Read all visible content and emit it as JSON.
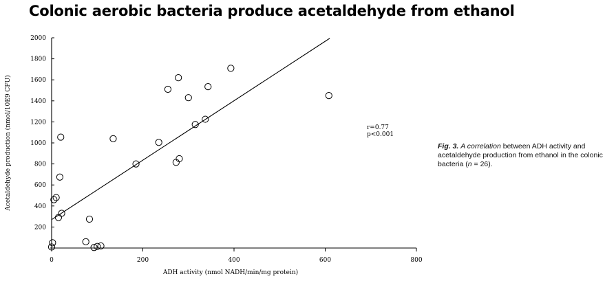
{
  "slide_title": "Colonic aerobic bacteria produce acetaldehyde from ethanol",
  "caption": {
    "label": "Fig. 3.",
    "text_parts": [
      {
        "text": "A ",
        "italic": true
      },
      {
        "text": "correlation",
        "italic": true
      },
      {
        "text": " between ADH activity and acetaldehyde production from ethanol in the colonic bacteria (",
        "italic": false
      },
      {
        "text": "n",
        "italic": true
      },
      {
        "text": " = 26).",
        "italic": false
      }
    ]
  },
  "chart_data": {
    "type": "scatter",
    "title": "",
    "xlabel": "ADH activity (nmol NADH/min/mg protein)",
    "ylabel": "Acetaldehyde production (nmol/10E9 CFU)",
    "xlim": [
      0,
      800
    ],
    "ylim": [
      0,
      2000
    ],
    "xticks": [
      0,
      200,
      400,
      600,
      800
    ],
    "yticks": [
      200,
      400,
      600,
      800,
      1000,
      1200,
      1400,
      1600,
      1800,
      2000
    ],
    "grid": false,
    "marker": "open-circle",
    "annotations": [
      "r=0.77",
      "p<0.001"
    ],
    "points": [
      {
        "x": 0,
        "y": 10
      },
      {
        "x": 2,
        "y": 50
      },
      {
        "x": 5,
        "y": 460
      },
      {
        "x": 10,
        "y": 480
      },
      {
        "x": 15,
        "y": 290
      },
      {
        "x": 18,
        "y": 675
      },
      {
        "x": 20,
        "y": 1055
      },
      {
        "x": 22,
        "y": 330
      },
      {
        "x": 75,
        "y": 60
      },
      {
        "x": 83,
        "y": 275
      },
      {
        "x": 93,
        "y": 5
      },
      {
        "x": 100,
        "y": 15
      },
      {
        "x": 108,
        "y": 20
      },
      {
        "x": 135,
        "y": 1040
      },
      {
        "x": 185,
        "y": 800
      },
      {
        "x": 235,
        "y": 1005
      },
      {
        "x": 255,
        "y": 1510
      },
      {
        "x": 273,
        "y": 815
      },
      {
        "x": 278,
        "y": 1620
      },
      {
        "x": 280,
        "y": 850
      },
      {
        "x": 300,
        "y": 1430
      },
      {
        "x": 315,
        "y": 1175
      },
      {
        "x": 337,
        "y": 1225
      },
      {
        "x": 343,
        "y": 1535
      },
      {
        "x": 393,
        "y": 1710
      },
      {
        "x": 608,
        "y": 1450
      }
    ],
    "regression_line": {
      "x": [
        0,
        610
      ],
      "y": [
        270,
        1995
      ]
    }
  }
}
